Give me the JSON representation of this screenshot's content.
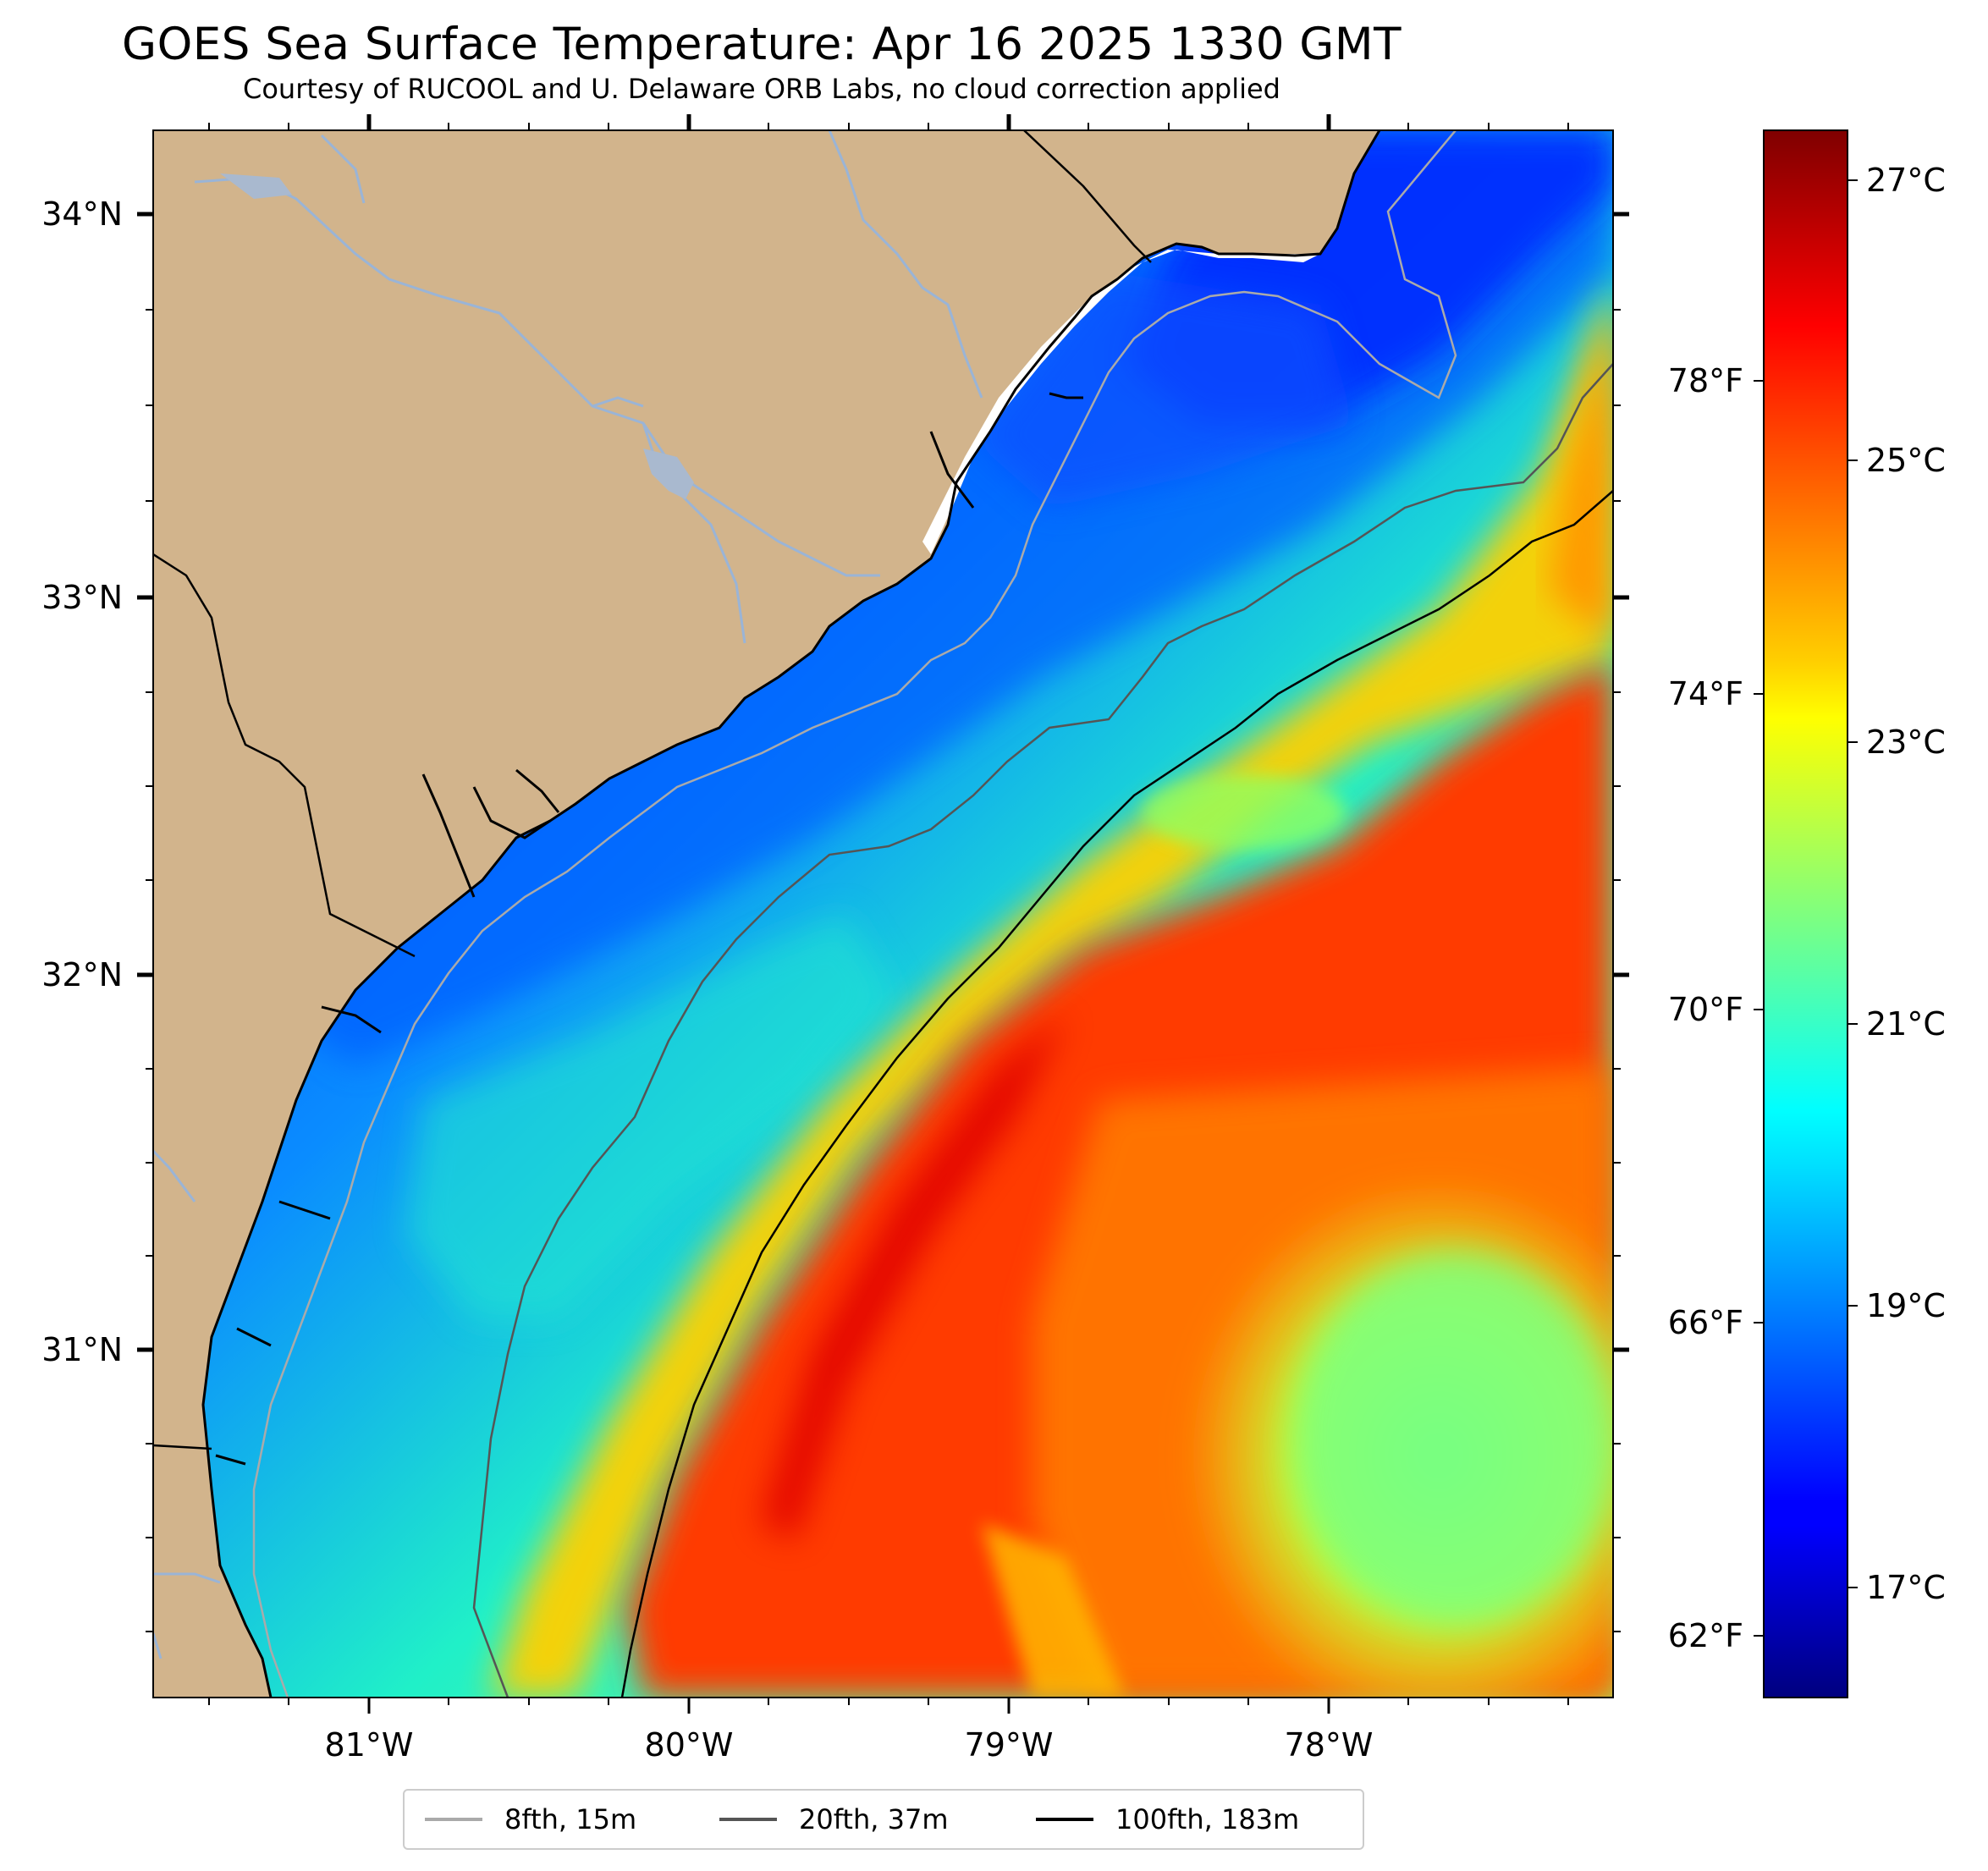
{
  "title": "GOES Sea Surface Temperature: Apr 16 2025 1330 GMT",
  "subtitle": "Courtesy of RUCOOL and U. Delaware ORB Labs, no cloud correction applied",
  "map": {
    "lat_labels": [
      "34°N",
      "33°N",
      "32°N",
      "31°N"
    ],
    "lon_labels": [
      "81°W",
      "80°W",
      "79°W",
      "78°W"
    ],
    "colors": {
      "land": "#d2b48c",
      "rivers": "#9ab4d6",
      "coast": "#000000",
      "lakes": "#a9b9cf"
    }
  },
  "colorbar": {
    "celsius_labels": [
      "27°C",
      "25°C",
      "23°C",
      "21°C",
      "19°C",
      "17°C"
    ],
    "fahrenheit_labels": [
      "78°F",
      "74°F",
      "70°F",
      "66°F",
      "62°F"
    ],
    "colormap": "jet",
    "range_celsius": [
      16.2,
      27.4
    ]
  },
  "legend": [
    {
      "label": "8fth, 15m",
      "color": "#aaaaaa"
    },
    {
      "label": "20fth, 37m",
      "color": "#555555"
    },
    {
      "label": "100fth, 183m",
      "color": "#000000"
    }
  ]
}
